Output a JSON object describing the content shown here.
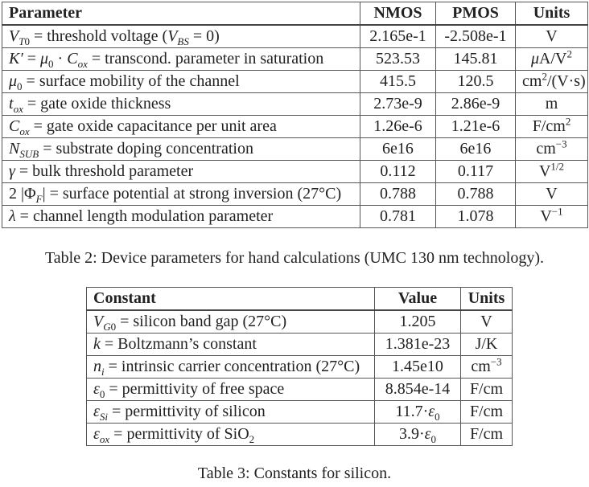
{
  "table2": {
    "headers": [
      "Parameter",
      "NMOS",
      "PMOS",
      "Units"
    ],
    "rows": [
      {
        "param": [
          {
            "s": "i",
            "t": "V"
          },
          {
            "s": "subi",
            "t": "T"
          },
          {
            "s": "sub",
            "t": "0"
          },
          {
            "s": "r",
            "t": " = threshold voltage ("
          },
          {
            "s": "i",
            "t": "V"
          },
          {
            "s": "subi",
            "t": "BS"
          },
          {
            "s": "r",
            "t": " = 0)"
          }
        ],
        "nmos": "2.165e-1",
        "pmos": "-2.508e-1",
        "units": [
          {
            "s": "r",
            "t": "V"
          }
        ]
      },
      {
        "param": [
          {
            "s": "i",
            "t": "K′"
          },
          {
            "s": "r",
            "t": " = "
          },
          {
            "s": "i",
            "t": "μ"
          },
          {
            "s": "sub",
            "t": "0"
          },
          {
            "s": "r",
            "t": " · "
          },
          {
            "s": "i",
            "t": "C"
          },
          {
            "s": "subi",
            "t": "ox"
          },
          {
            "s": "r",
            "t": " = transcond. parameter in saturation"
          }
        ],
        "nmos": "523.53",
        "pmos": "145.81",
        "units": [
          {
            "s": "i",
            "t": "μ"
          },
          {
            "s": "r",
            "t": "A/V"
          },
          {
            "s": "sup",
            "t": "2"
          }
        ]
      },
      {
        "param": [
          {
            "s": "i",
            "t": "μ"
          },
          {
            "s": "sub",
            "t": "0"
          },
          {
            "s": "r",
            "t": " = surface mobility of the channel"
          }
        ],
        "nmos": "415.5",
        "pmos": "120.5",
        "units": [
          {
            "s": "r",
            "t": "cm"
          },
          {
            "s": "sup",
            "t": "2"
          },
          {
            "s": "r",
            "t": "/(V·s)"
          }
        ]
      },
      {
        "param": [
          {
            "s": "i",
            "t": "t"
          },
          {
            "s": "subi",
            "t": "ox"
          },
          {
            "s": "r",
            "t": " = gate oxide thickness"
          }
        ],
        "nmos": "2.73e-9",
        "pmos": "2.86e-9",
        "units": [
          {
            "s": "r",
            "t": "m"
          }
        ]
      },
      {
        "param": [
          {
            "s": "i",
            "t": "C"
          },
          {
            "s": "subi",
            "t": "ox"
          },
          {
            "s": "r",
            "t": " = gate oxide capacitance per unit area"
          }
        ],
        "nmos": "1.26e-6",
        "pmos": "1.21e-6",
        "units": [
          {
            "s": "r",
            "t": "F/cm"
          },
          {
            "s": "sup",
            "t": "2"
          }
        ]
      },
      {
        "param": [
          {
            "s": "i",
            "t": "N"
          },
          {
            "s": "subi",
            "t": "SUB"
          },
          {
            "s": "r",
            "t": " = substrate doping concentration"
          }
        ],
        "nmos": "6e16",
        "pmos": "6e16",
        "units": [
          {
            "s": "r",
            "t": "cm"
          },
          {
            "s": "sup",
            "t": "−3"
          }
        ]
      },
      {
        "param": [
          {
            "s": "i",
            "t": "γ"
          },
          {
            "s": "r",
            "t": " = bulk threshold parameter"
          }
        ],
        "nmos": "0.112",
        "pmos": "0.117",
        "units": [
          {
            "s": "r",
            "t": "V"
          },
          {
            "s": "sup",
            "t": "1/2"
          }
        ]
      },
      {
        "param": [
          {
            "s": "r",
            "t": "2 |Φ"
          },
          {
            "s": "subi",
            "t": "F"
          },
          {
            "s": "r",
            "t": "| = surface potential at strong inversion (27°C)"
          }
        ],
        "nmos": "0.788",
        "pmos": "0.788",
        "units": [
          {
            "s": "r",
            "t": "V"
          }
        ]
      },
      {
        "param": [
          {
            "s": "i",
            "t": "λ"
          },
          {
            "s": "r",
            "t": " = channel length modulation parameter"
          }
        ],
        "nmos": "0.781",
        "pmos": "1.078",
        "units": [
          {
            "s": "r",
            "t": "V"
          },
          {
            "s": "sup",
            "t": "−1"
          }
        ]
      }
    ],
    "caption": "Table 2: Device parameters for hand calculations (UMC 130 nm technology)."
  },
  "table3": {
    "headers": [
      "Constant",
      "Value",
      "Units"
    ],
    "rows": [
      {
        "param": [
          {
            "s": "i",
            "t": "V"
          },
          {
            "s": "subi",
            "t": "G"
          },
          {
            "s": "sub",
            "t": "0"
          },
          {
            "s": "r",
            "t": " = silicon band gap (27°C)"
          }
        ],
        "value": [
          {
            "s": "r",
            "t": "1.205"
          }
        ],
        "units": [
          {
            "s": "r",
            "t": "V"
          }
        ]
      },
      {
        "param": [
          {
            "s": "i",
            "t": "k"
          },
          {
            "s": "r",
            "t": " = Boltzmann’s constant"
          }
        ],
        "value": [
          {
            "s": "r",
            "t": "1.381e-23"
          }
        ],
        "units": [
          {
            "s": "r",
            "t": "J/K"
          }
        ]
      },
      {
        "param": [
          {
            "s": "i",
            "t": "n"
          },
          {
            "s": "subi",
            "t": "i"
          },
          {
            "s": "r",
            "t": " = intrinsic carrier concentration (27°C)"
          }
        ],
        "value": [
          {
            "s": "r",
            "t": "1.45e10"
          }
        ],
        "units": [
          {
            "s": "r",
            "t": "cm"
          },
          {
            "s": "sup",
            "t": "−3"
          }
        ]
      },
      {
        "param": [
          {
            "s": "i",
            "t": "ε"
          },
          {
            "s": "sub",
            "t": "0"
          },
          {
            "s": "r",
            "t": " = permittivity of free space"
          }
        ],
        "value": [
          {
            "s": "r",
            "t": "8.854e-14"
          }
        ],
        "units": [
          {
            "s": "r",
            "t": "F/cm"
          }
        ]
      },
      {
        "param": [
          {
            "s": "i",
            "t": "ε"
          },
          {
            "s": "subi",
            "t": "Si"
          },
          {
            "s": "r",
            "t": " = permittivity of silicon"
          }
        ],
        "value": [
          {
            "s": "r",
            "t": "11.7·"
          },
          {
            "s": "i",
            "t": "ε"
          },
          {
            "s": "sub",
            "t": "0"
          }
        ],
        "units": [
          {
            "s": "r",
            "t": "F/cm"
          }
        ]
      },
      {
        "param": [
          {
            "s": "i",
            "t": "ε"
          },
          {
            "s": "subi",
            "t": "ox"
          },
          {
            "s": "r",
            "t": " = permittivity of SiO"
          },
          {
            "s": "sub",
            "t": "2"
          }
        ],
        "value": [
          {
            "s": "r",
            "t": "3.9·"
          },
          {
            "s": "i",
            "t": "ε"
          },
          {
            "s": "sub",
            "t": "0"
          }
        ],
        "units": [
          {
            "s": "r",
            "t": "F/cm"
          }
        ]
      }
    ],
    "caption": "Table 3: Constants for silicon."
  }
}
